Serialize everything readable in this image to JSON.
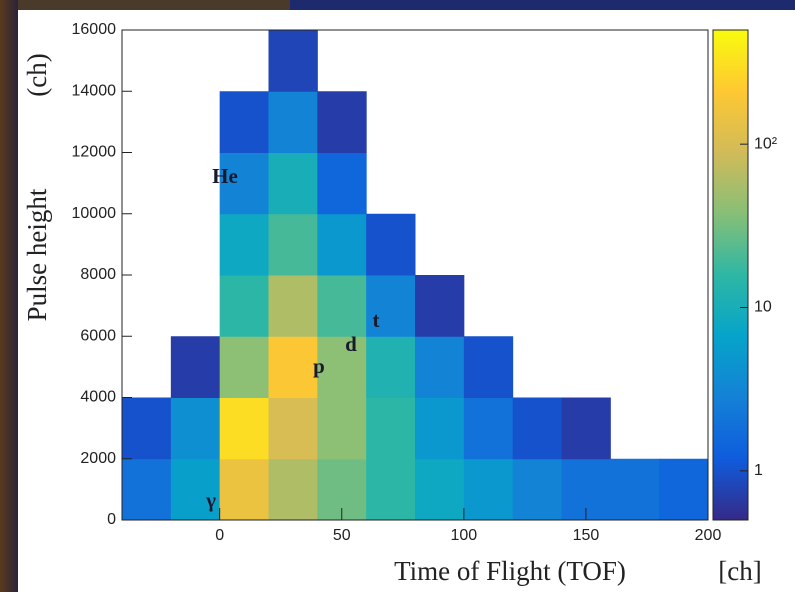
{
  "chart_data": {
    "type": "heatmap",
    "xlabel": "Time of Flight (TOF)",
    "xunit": "[ch]",
    "ylabel": "Pulse height",
    "yunit": "(ch)",
    "x_bins": [
      -40,
      -20,
      0,
      20,
      40,
      60,
      80,
      100,
      120,
      140,
      160,
      180,
      200
    ],
    "y_bins": [
      0,
      2000,
      4000,
      6000,
      8000,
      10000,
      12000,
      14000,
      16000
    ],
    "z": [
      [
        2,
        6,
        150,
        60,
        30,
        15,
        8,
        5,
        3,
        2,
        2,
        1.5
      ],
      [
        1,
        4,
        300,
        100,
        40,
        15,
        5,
        2,
        1,
        0.7,
        null,
        null
      ],
      [
        null,
        0.7,
        40,
        200,
        40,
        12,
        3,
        1,
        null,
        null,
        null,
        null
      ],
      [
        null,
        null,
        15,
        60,
        20,
        3,
        0.7,
        null,
        null,
        null,
        null,
        null
      ],
      [
        null,
        null,
        8,
        20,
        5,
        1,
        null,
        null,
        null,
        null,
        null,
        null
      ],
      [
        null,
        null,
        3,
        10,
        1.5,
        null,
        null,
        null,
        null,
        null,
        null,
        null
      ],
      [
        null,
        null,
        1,
        3,
        0.7,
        null,
        null,
        null,
        null,
        null,
        null,
        null
      ],
      [
        null,
        null,
        null,
        0.8,
        null,
        null,
        null,
        null,
        null,
        null,
        null,
        null
      ]
    ],
    "xlim": [
      -40,
      200
    ],
    "ylim": [
      0,
      16000
    ],
    "xticks": [
      0,
      50,
      100,
      150,
      200
    ],
    "yticks": [
      0,
      2000,
      4000,
      6000,
      8000,
      10000,
      12000,
      14000,
      16000
    ],
    "zlim": [
      0.5,
      500
    ],
    "zscale": "log",
    "zticks": [
      1,
      10,
      {
        "value": 100,
        "label": "10²"
      }
    ],
    "colormap": [
      "#352a87",
      "#0f5cdd",
      "#1481d6",
      "#06a4ca",
      "#2eb7a4",
      "#87bf77",
      "#d1bb59",
      "#fec832",
      "#f9fb0e"
    ],
    "annotations": [
      "He",
      "t",
      "d",
      "p",
      "γ"
    ]
  }
}
